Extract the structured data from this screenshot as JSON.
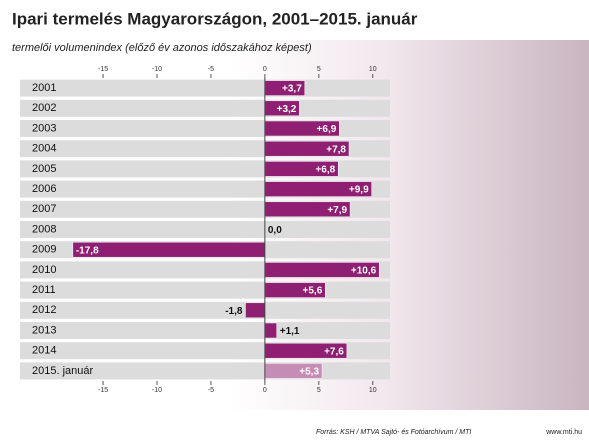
{
  "chart_data": {
    "type": "barh",
    "title": "Ipari termelés Magyarországon, 2001–2015. január",
    "subtitle": "termelői volumenindex (előző év azonos időszakához képest)",
    "categories": [
      "2001",
      "2002",
      "2003",
      "2004",
      "2005",
      "2006",
      "2007",
      "2008",
      "2009",
      "2010",
      "2011",
      "2012",
      "2013",
      "2014",
      "2015. január"
    ],
    "values": [
      3.7,
      3.2,
      6.9,
      7.8,
      6.8,
      9.9,
      7.9,
      0.0,
      -17.8,
      10.6,
      5.6,
      -1.8,
      1.1,
      7.6,
      5.3
    ],
    "value_labels": [
      "+3,7",
      "+3,2",
      "+6,9",
      "+7,8",
      "+6,8",
      "+9,9",
      "+7,9",
      "0,0",
      "-17,8",
      "+10,6",
      "+5,6",
      "-1,8",
      "+1,1",
      "+7,6",
      "+5,3"
    ],
    "colors": [
      "#8e1f72",
      "#8e1f72",
      "#8e1f72",
      "#8e1f72",
      "#8e1f72",
      "#8e1f72",
      "#8e1f72",
      "#8e1f72",
      "#8e1f72",
      "#8e1f72",
      "#8e1f72",
      "#8e1f72",
      "#8e1f72",
      "#8e1f72",
      "#c58cb6"
    ],
    "xlim": [
      -22.7,
      11.6
    ],
    "xticks": [
      -15,
      -10,
      -5,
      0,
      5,
      10
    ],
    "source": "Forrás: KSH / MTVA Sajtó- és Fotóarchívum / MTI",
    "site": "www.mti.hu"
  }
}
